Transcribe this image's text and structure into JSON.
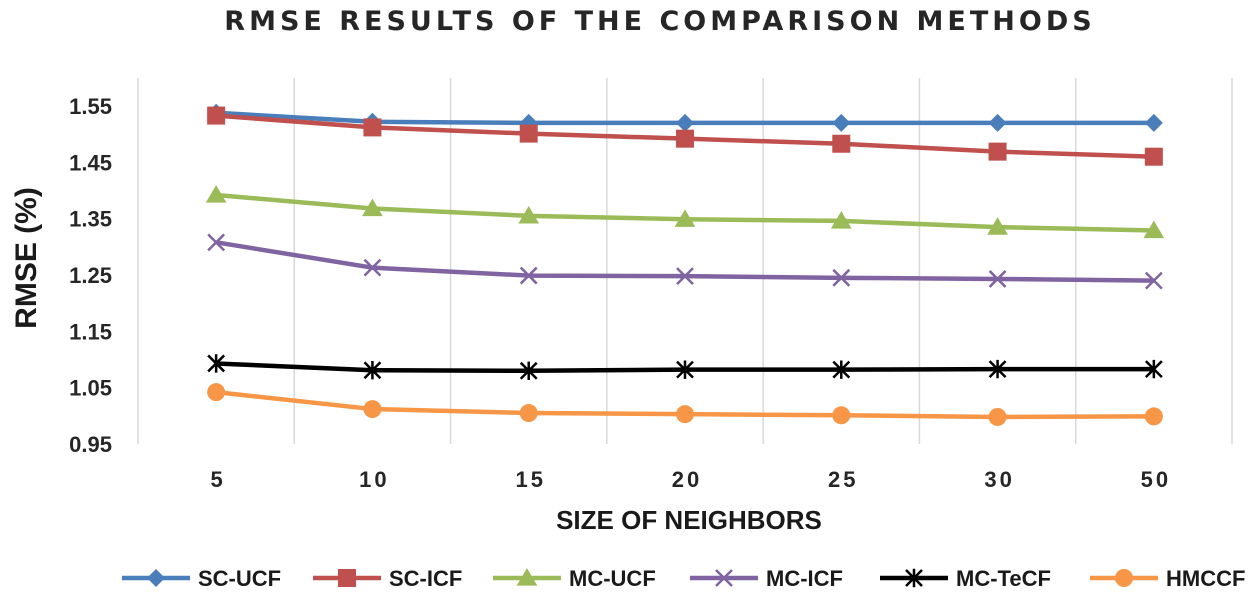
{
  "chart_data": {
    "type": "line",
    "title": "RMSE RESULTS OF THE COMPARISON METHODS",
    "xlabel": "SIZE OF NEIGHBORS",
    "ylabel": "RMSE (%)",
    "categories": [
      "5",
      "10",
      "15",
      "20",
      "25",
      "30",
      "50"
    ],
    "ylim": [
      0.95,
      1.55
    ],
    "yticks": [
      "0.95",
      "1.05",
      "1.15",
      "1.25",
      "1.35",
      "1.45",
      "1.55"
    ],
    "grid": "vertical",
    "legend": "bottom",
    "series": [
      {
        "name": "SC-UCF",
        "color": "#4a7ebb",
        "marker": "diamond",
        "values": [
          1.538,
          1.522,
          1.52,
          1.52,
          1.52,
          1.52,
          1.52
        ]
      },
      {
        "name": "SC-ICF",
        "color": "#c0504d",
        "marker": "square",
        "values": [
          1.533,
          1.512,
          1.501,
          1.492,
          1.483,
          1.469,
          1.46
        ]
      },
      {
        "name": "MC-UCF",
        "color": "#9bbb59",
        "marker": "triangle",
        "values": [
          1.392,
          1.368,
          1.355,
          1.349,
          1.346,
          1.335,
          1.329
        ]
      },
      {
        "name": "MC-ICF",
        "color": "#8064a2",
        "marker": "x",
        "values": [
          1.308,
          1.263,
          1.249,
          1.248,
          1.245,
          1.243,
          1.24
        ]
      },
      {
        "name": "MC-TeCF",
        "color": "#000000",
        "marker": "star",
        "values": [
          1.093,
          1.081,
          1.08,
          1.082,
          1.082,
          1.083,
          1.083
        ]
      },
      {
        "name": "HMCCF",
        "color": "#f79646",
        "marker": "circle",
        "values": [
          1.042,
          1.012,
          1.005,
          1.003,
          1.001,
          0.998,
          0.999
        ]
      }
    ]
  }
}
